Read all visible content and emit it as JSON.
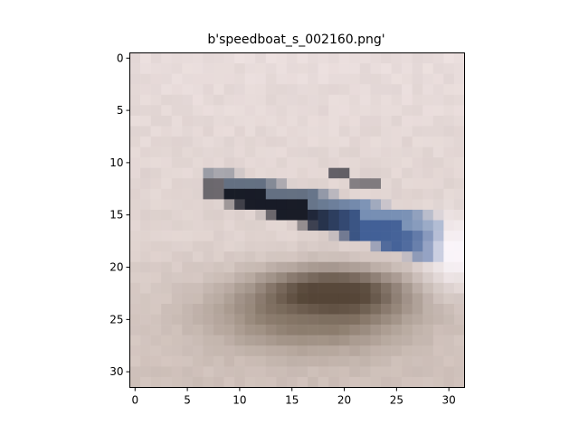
{
  "chart_data": {
    "type": "heatmap",
    "title": "b'speedboat_s_002160.png'",
    "xlabel": "",
    "ylabel": "",
    "grid": false,
    "origin": "upper",
    "xlim": [
      -0.5,
      31.5
    ],
    "ylim": [
      31.5,
      -0.5
    ],
    "x_ticks": [
      0,
      5,
      10,
      15,
      20,
      25,
      30
    ],
    "y_ticks": [
      0,
      5,
      10,
      15,
      20,
      25,
      30
    ],
    "x_tick_labels": [
      "0",
      "5",
      "10",
      "15",
      "20",
      "25",
      "30"
    ],
    "y_tick_labels": [
      "0",
      "5",
      "10",
      "15",
      "20",
      "25",
      "30"
    ],
    "image_shape": [
      32,
      32
    ],
    "colors": {
      "background": "#e8dcdb",
      "sand_light": "#ddd0cc",
      "sand_mid": "#cbbcb5",
      "hull_dark": "#0e121e",
      "hull_blue": "#3a5a94",
      "hull_light": "#9fb4cc",
      "deck_brown": "#4a3a2c",
      "shadow": "#7a6a58",
      "glare": "#fbf6fb"
    }
  }
}
